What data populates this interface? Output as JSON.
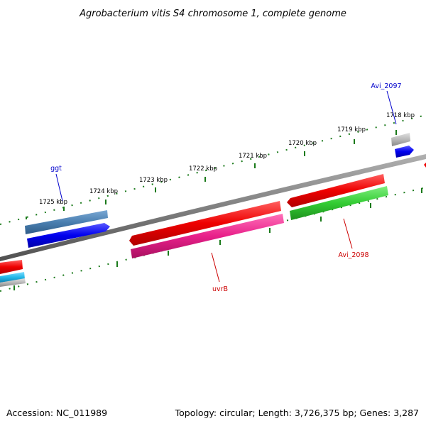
{
  "title": "Agrobacterium vitis S4 chromosome 1, complete genome",
  "footer": {
    "accession": "Accession: NC_011989",
    "summary": "Topology: circular; Length: 3,726,375 bp; Genes: 3,287"
  },
  "ticks": [
    {
      "label": "1718 kbp"
    },
    {
      "label": "1719 kbp"
    },
    {
      "label": "1720 kbp"
    },
    {
      "label": "1721 kbp"
    },
    {
      "label": "1722 kbp"
    },
    {
      "label": "1723 kbp"
    },
    {
      "label": "1724 kbp"
    },
    {
      "label": "1725 kbp"
    }
  ],
  "gene_labels": [
    {
      "text": "Avi_2097",
      "color": "#0000cc"
    },
    {
      "text": "ggt",
      "color": "#0000cc"
    },
    {
      "text": "uvrB",
      "color": "#cc0000"
    },
    {
      "text": "Avi_2098",
      "color": "#cc0000"
    }
  ],
  "colors": {
    "backbone": "#808080",
    "tick": "#1a7a1a",
    "cds_blue": "#0000ee",
    "cds_red": "#ee0000",
    "gene_steel": "#4a7fb0",
    "gene_pink": "#e8208a",
    "gene_green": "#33cc33",
    "cyan": "#22b8e8",
    "gray": "#b8b8b8"
  }
}
